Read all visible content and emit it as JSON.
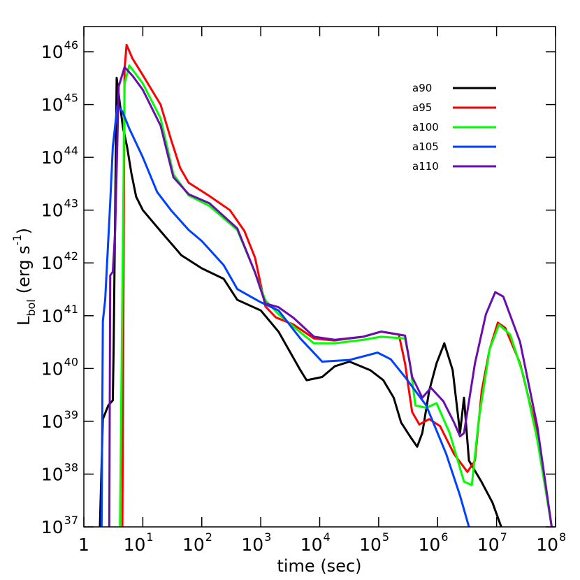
{
  "chart_data": {
    "type": "line",
    "xlabel": "time (sec)",
    "ylabel": {
      "text": "L",
      "sub": "bol",
      "rest": "(erg s",
      "sup": "-1",
      "end": ")"
    },
    "xscale": "log",
    "yscale": "log",
    "xlim": [
      1,
      100000000
    ],
    "ylim": [
      1e+37,
      3e+46
    ],
    "xticks": [
      1,
      {
        "value": 10,
        "label": "10",
        "sup": "1"
      },
      {
        "value": 100,
        "label": "10",
        "sup": "2"
      },
      {
        "value": 1000,
        "label": "10",
        "sup": "3"
      },
      {
        "value": 10000,
        "label": "10",
        "sup": "4"
      },
      {
        "value": 100000,
        "label": "10",
        "sup": "5"
      },
      {
        "value": 1000000,
        "label": "10",
        "sup": "6"
      },
      {
        "value": 10000000,
        "label": "10",
        "sup": "7"
      },
      {
        "value": 100000000,
        "label": "10",
        "sup": "8"
      }
    ],
    "yticks": [
      {
        "value": 1e+37,
        "label": "10",
        "sup": "37"
      },
      {
        "value": 1e+38,
        "label": "10",
        "sup": "38"
      },
      {
        "value": 1e+39,
        "label": "10",
        "sup": "39"
      },
      {
        "value": 1e+40,
        "label": "10",
        "sup": "40"
      },
      {
        "value": 1e+41,
        "label": "10",
        "sup": "41"
      },
      {
        "value": 1e+42,
        "label": "10",
        "sup": "42"
      },
      {
        "value": 1e+43,
        "label": "10",
        "sup": "43"
      },
      {
        "value": 1e+44,
        "label": "10",
        "sup": "44"
      },
      {
        "value": 1e+45,
        "label": "10",
        "sup": "45"
      },
      {
        "value": 1e+46,
        "label": "10",
        "sup": "46"
      }
    ],
    "legend": "upper right",
    "series": [
      {
        "name": "a90",
        "color": "#000000",
        "x": [
          1.87,
          2.1,
          2.6,
          3.1,
          3.2,
          3.6,
          4.1,
          4.6,
          5.4,
          6.4,
          7.7,
          10,
          20,
          45,
          100,
          235,
          400,
          1000,
          2000,
          4700,
          6000,
          11000,
          18000,
          32000,
          72000,
          120000,
          180000,
          240000,
          340000,
          450000,
          550000,
          720000,
          960000,
          1300000,
          1800000,
          2400000,
          2800000,
          3400000,
          5600000,
          8500000,
          12000000
        ],
        "values": [
          1e+37,
          1.1e+39,
          2e+39,
          2.5e+39,
          2.5e+40,
          3.2e+45,
          1e+45,
          3.7e+44,
          1.6e+44,
          5e+43,
          1.8e+43,
          1e+43,
          4e+42,
          1.4e+42,
          7.9e+41,
          5e+41,
          2e+41,
          1.26e+41,
          5e+40,
          9.3e+39,
          6e+39,
          6.9e+39,
          1.1e+40,
          1.35e+40,
          9.3e+39,
          6e+39,
          2.8e+39,
          9.5e+38,
          5.2e+38,
          3.3e+38,
          6e+38,
          3.8e+39,
          1.26e+40,
          3e+40,
          9.3e+39,
          6e+38,
          2.8e+39,
          1.8e+38,
          7e+37,
          2.9e+37,
          1e+37
        ]
      },
      {
        "name": "a95",
        "color": "#ff0000",
        "x": [
          4.5,
          4.9,
          5.3,
          6.7,
          10,
          20,
          30,
          43,
          60,
          130,
          300,
          530,
          800,
          1200,
          1800,
          3600,
          8000,
          18000,
          55000,
          110000,
          220000,
          280000,
          340000,
          370000,
          490000,
          720000,
          1100000,
          1900000,
          3200000,
          4300000,
          5600000,
          7600000,
          10500000,
          14000000,
          25000000,
          49000000,
          86000000
        ],
        "values": [
          1e+37,
          4.7e+45,
          1.35e+46,
          7.4e+45,
          3.6e+45,
          1e+45,
          2.2e+44,
          6.3e+43,
          3.3e+43,
          1.9e+43,
          1e+43,
          4e+42,
          1.26e+42,
          1.5e+41,
          9.3e+40,
          6.8e+40,
          3.7e+40,
          3.4e+40,
          4e+40,
          5e+40,
          4.4e+40,
          1.26e+40,
          2.8e+39,
          1.5e+39,
          8.7e+38,
          1.1e+39,
          8.1e+38,
          2.4e+38,
          1.1e+38,
          1.8e+38,
          3.8e+39,
          2.3e+40,
          7.4e+40,
          5.9e+40,
          1.26e+40,
          6e+38,
          1e+37
        ]
      },
      {
        "name": "a100",
        "color": "#00ff00",
        "x": [
          4.1,
          4.9,
          5.9,
          10,
          20,
          33,
          60,
          135,
          400,
          800,
          1200,
          2000,
          3600,
          8000,
          18000,
          55000,
          110000,
          280000,
          340000,
          420000,
          640000,
          960000,
          1600000,
          2800000,
          3800000,
          5000000,
          7600000,
          11000000,
          17000000,
          29000000,
          49000000,
          86000000
        ],
        "values": [
          1e+37,
          2.5e+45,
          5.5e+45,
          2.5e+45,
          5.5e+44,
          4.8e+43,
          1.9e+43,
          1.2e+43,
          4.2e+42,
          6.6e+41,
          1.95e+41,
          1.07e+41,
          6.2e+40,
          3e+40,
          3e+40,
          3.5e+40,
          4e+40,
          3.7e+40,
          1.26e+40,
          2e+39,
          1.8e+39,
          2.2e+39,
          6e+38,
          7.2e+37,
          6.2e+37,
          1.1e+39,
          2.3e+40,
          6.8e+40,
          4.4e+40,
          6.9e+39,
          4.5e+38,
          1e+37
        ]
      },
      {
        "name": "a105",
        "color": "#0040ff",
        "x": [
          2,
          2.1,
          2.3,
          2.8,
          3.1,
          3.7,
          4.5,
          5.9,
          10,
          17.5,
          30,
          60,
          100,
          235,
          400,
          1000,
          2000,
          4700,
          11000,
          32000,
          96000,
          160000,
          280000,
          640000,
          1400000,
          2400000,
          3400000
        ],
        "values": [
          1e+37,
          7.9e+40,
          2e+41,
          1.4e+43,
          1.6e+44,
          9.5e+44,
          7.4e+44,
          3.5e+44,
          1e+44,
          2.2e+43,
          1e+43,
          4.2e+42,
          2.6e+42,
          9.1e+41,
          3.2e+41,
          1.8e+41,
          1.26e+41,
          3.7e+40,
          1.35e+40,
          1.45e+40,
          2e+40,
          1.5e+40,
          6.9e+39,
          2e+39,
          2.4e+38,
          3.9e+37,
          1e+37
        ]
      },
      {
        "name": "a110",
        "color": "#6a0dad",
        "x": [
          2.7,
          2.8,
          3.1,
          3.4,
          3.9,
          4.9,
          6.7,
          10,
          20,
          33,
          60,
          135,
          400,
          800,
          1200,
          2000,
          3600,
          8000,
          18000,
          55000,
          110000,
          280000,
          370000,
          550000,
          770000,
          1250000,
          1900000,
          2400000,
          2800000,
          4300000,
          6600000,
          9500000,
          13000000,
          25000000,
          49000000,
          86000000
        ],
        "values": [
          1e+37,
          5.8e+41,
          6.8e+41,
          4.2e+42,
          2.2e+45,
          5.1e+45,
          3.5e+45,
          1.9e+45,
          4e+44,
          4.2e+43,
          2e+43,
          1.35e+43,
          4.5e+42,
          6.6e+41,
          1.7e+41,
          1.45e+41,
          9.1e+40,
          4e+40,
          3.5e+40,
          4e+40,
          5e+40,
          4.2e+40,
          6.9e+39,
          2.8e+39,
          4.3e+39,
          2.4e+39,
          9.5e+38,
          5.2e+38,
          6e+38,
          1.26e+40,
          1.07e+41,
          2.8e+41,
          2.3e+41,
          3.2e+40,
          8.1e+38,
          1e+37
        ]
      }
    ]
  }
}
